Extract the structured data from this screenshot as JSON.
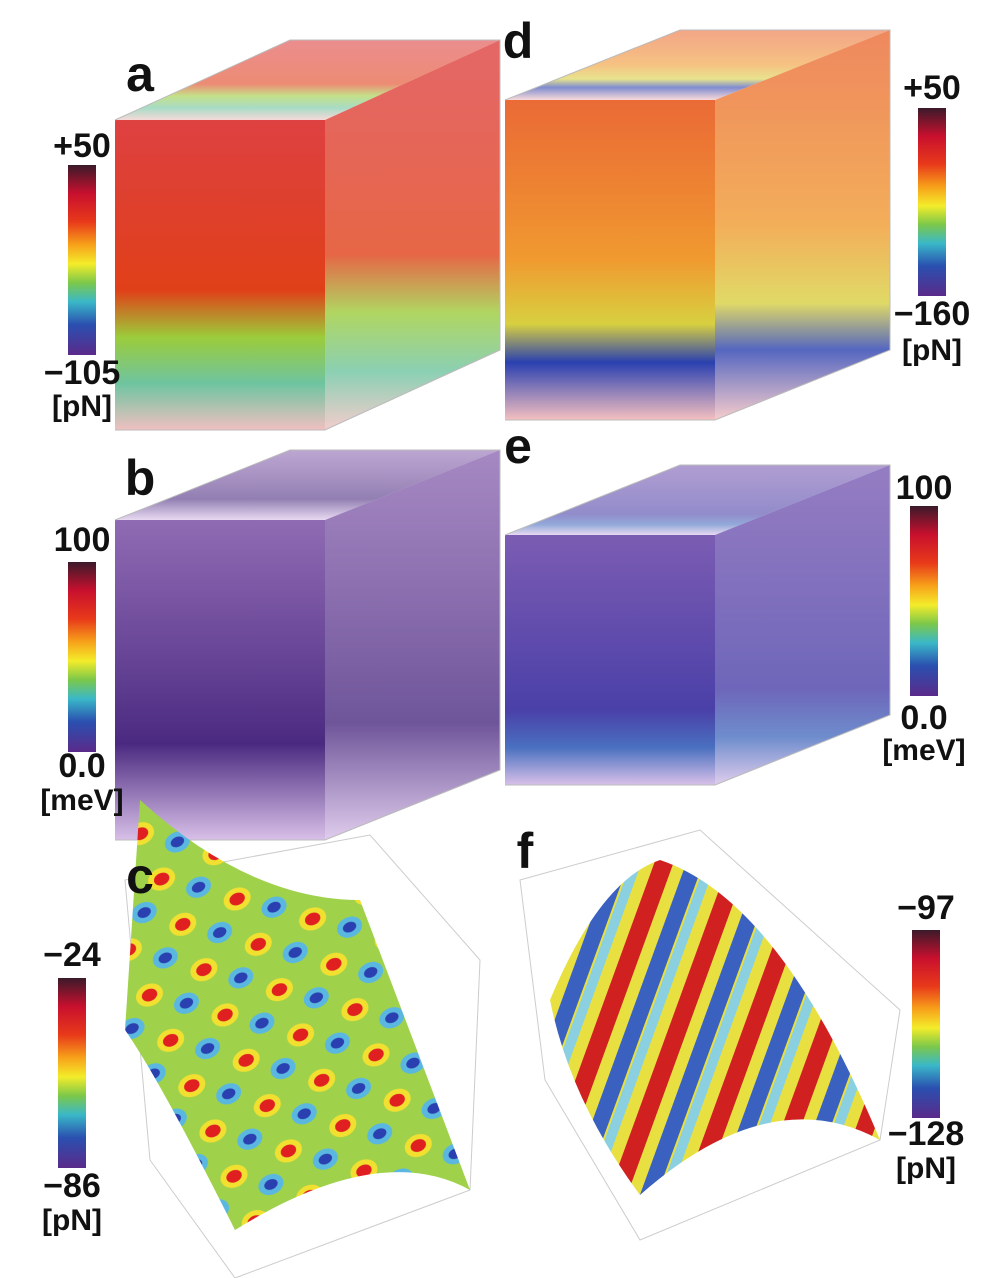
{
  "panels": [
    {
      "label": "a",
      "max": "+50",
      "min": "−105",
      "unit": "[pN]"
    },
    {
      "label": "b",
      "max": "100",
      "min": "0.0",
      "unit": "[meV]"
    },
    {
      "label": "c",
      "max": "−24",
      "min": "−86",
      "unit": "[pN]"
    },
    {
      "label": "d",
      "max": "+50",
      "min": "−160",
      "unit": "[pN]"
    },
    {
      "label": "e",
      "max": "100",
      "min": "0.0",
      "unit": "[meV]"
    },
    {
      "label": "f",
      "max": "−97",
      "min": "−128",
      "unit": "[pN]"
    }
  ]
}
